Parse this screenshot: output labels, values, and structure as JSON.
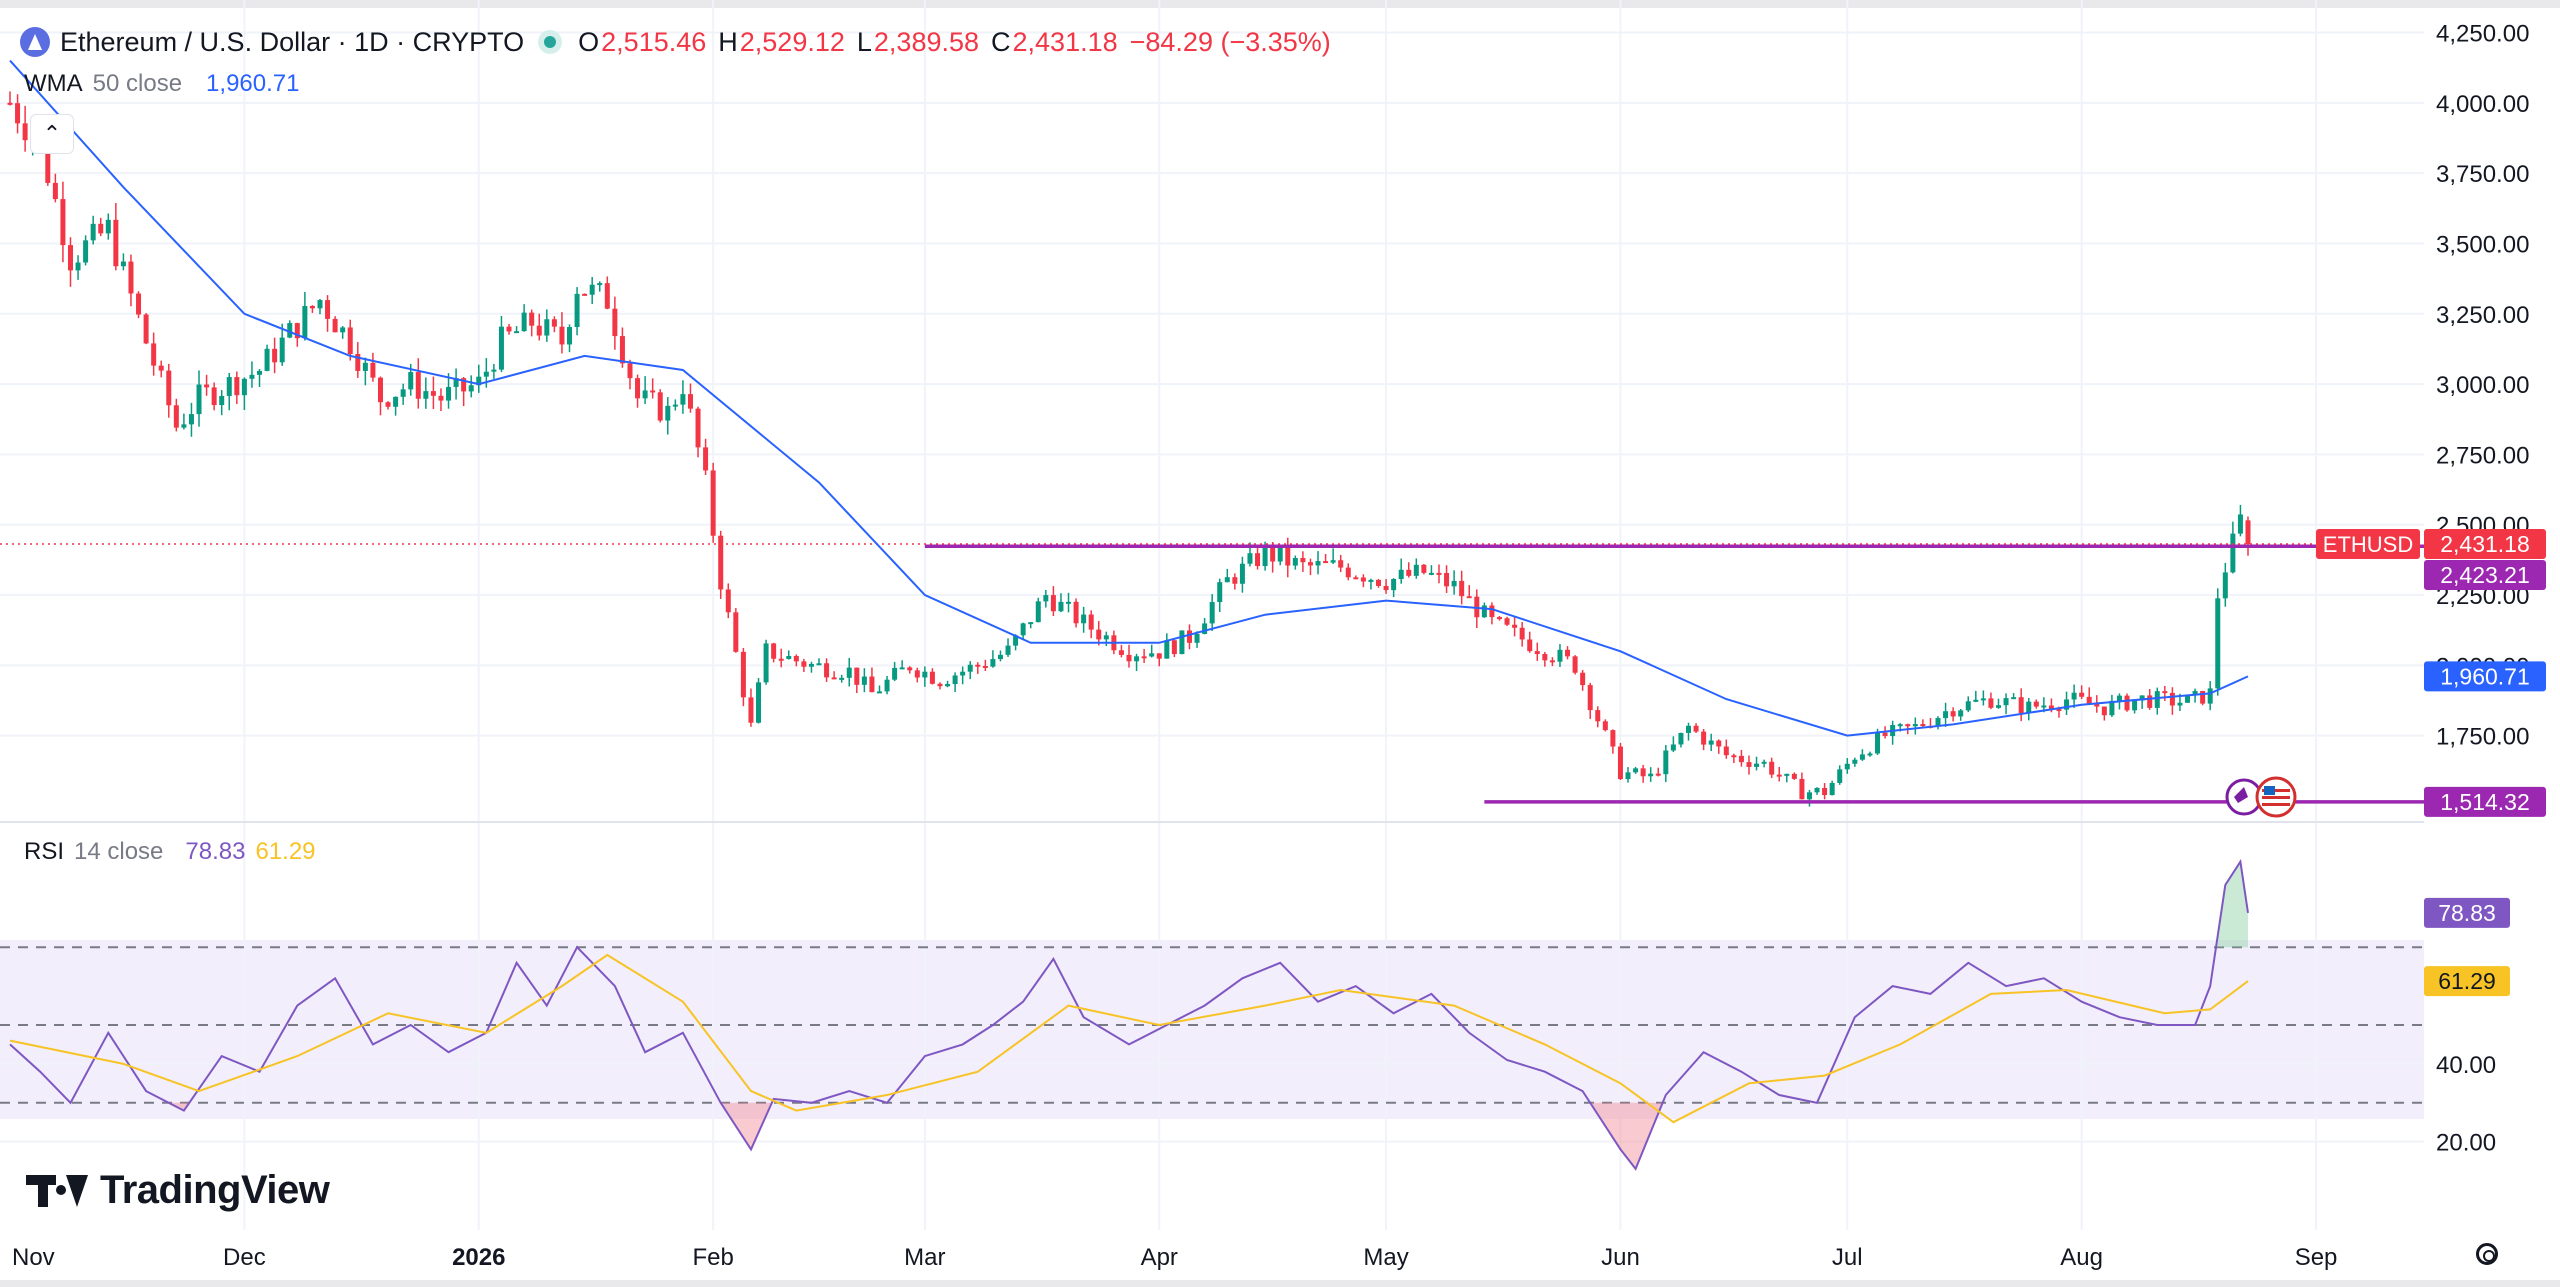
{
  "header": {
    "title": "Ethereum / U.S. Dollar · 1D · CRYPTO",
    "ohlc": {
      "o_label": "O",
      "o": "2,515.46",
      "h_label": "H",
      "h": "2,529.12",
      "l_label": "L",
      "l": "2,389.58",
      "c_label": "C",
      "c": "2,431.18",
      "change": "−84.29 (−3.35%)"
    }
  },
  "wma": {
    "name": "WMA",
    "params": "50 close",
    "value": "1,960.71"
  },
  "rsi": {
    "name": "RSI",
    "params": "14 close",
    "value": "78.83",
    "ma_value": "61.29"
  },
  "branding": {
    "logo_text": "TradingView"
  },
  "colors": {
    "up": "#089981",
    "down": "#f23645",
    "wma": "#2962ff",
    "level_line": "#9c27b0",
    "rsi_line": "#7e57c2",
    "rsi_ma": "#f7c325",
    "rsi_band": "#f2eefb",
    "grid": "#f0f3fa",
    "axis_text": "#131722"
  },
  "chart_data": [
    {
      "type": "candlestick",
      "symbol": "ETHUSD",
      "interval": "1D",
      "price_axis_labels": [
        "4,250.00",
        "4,000.00",
        "3,750.00",
        "3,500.00",
        "3,250.00",
        "3,000.00",
        "2,750.00",
        "2,500.00",
        "2,250.00",
        "2,000.00",
        "1,750.00"
      ],
      "price_axis_range": [
        1450,
        4330
      ],
      "time_axis_labels": [
        "Nov",
        "Dec",
        "2026",
        "Feb",
        "Mar",
        "Apr",
        "May",
        "Jun",
        "Jul",
        "Aug",
        "Sep"
      ],
      "time_axis_start": "2025-10-31",
      "date_range": [
        "2025-10-31",
        "2026-08-23"
      ],
      "last_price": 2431.18,
      "close_path": [
        [
          "2025-10-31",
          4000
        ],
        [
          "2025-11-04",
          3850
        ],
        [
          "2025-11-08",
          3450
        ],
        [
          "2025-11-13",
          3550
        ],
        [
          "2025-11-18",
          3150
        ],
        [
          "2025-11-22",
          2850
        ],
        [
          "2025-11-25",
          2950
        ],
        [
          "2025-11-29",
          3000
        ],
        [
          "2025-12-03",
          3050
        ],
        [
          "2025-12-07",
          3180
        ],
        [
          "2025-12-11",
          3300
        ],
        [
          "2025-12-15",
          3150
        ],
        [
          "2025-12-19",
          2950
        ],
        [
          "2025-12-23",
          3000
        ],
        [
          "2025-12-27",
          2950
        ],
        [
          "2026-01-01",
          3000
        ],
        [
          "2026-01-04",
          3150
        ],
        [
          "2026-01-08",
          3220
        ],
        [
          "2026-01-12",
          3150
        ],
        [
          "2026-01-14",
          3350
        ],
        [
          "2026-01-18",
          3300
        ],
        [
          "2026-01-22",
          2950
        ],
        [
          "2026-01-26",
          2900
        ],
        [
          "2026-01-28",
          3000
        ],
        [
          "2026-01-31",
          2650
        ],
        [
          "2026-02-02",
          2300
        ],
        [
          "2026-02-06",
          1780
        ],
        [
          "2026-02-08",
          2050
        ],
        [
          "2026-02-14",
          2000
        ],
        [
          "2026-02-19",
          1980
        ],
        [
          "2026-02-22",
          1900
        ],
        [
          "2026-02-27",
          2000
        ],
        [
          "2026-03-03",
          1950
        ],
        [
          "2026-03-08",
          2000
        ],
        [
          "2026-03-12",
          2050
        ],
        [
          "2026-03-17",
          2250
        ],
        [
          "2026-03-22",
          2150
        ],
        [
          "2026-03-28",
          2050
        ],
        [
          "2026-04-01",
          2050
        ],
        [
          "2026-04-05",
          2100
        ],
        [
          "2026-04-10",
          2300
        ],
        [
          "2026-04-15",
          2400
        ],
        [
          "2026-04-20",
          2350
        ],
        [
          "2026-04-25",
          2350
        ],
        [
          "2026-05-01",
          2300
        ],
        [
          "2026-05-06",
          2330
        ],
        [
          "2026-05-10",
          2280
        ],
        [
          "2026-05-15",
          2150
        ],
        [
          "2026-05-20",
          2080
        ],
        [
          "2026-05-26",
          2000
        ],
        [
          "2026-06-01",
          1620
        ],
        [
          "2026-06-05",
          1600
        ],
        [
          "2026-06-10",
          1780
        ],
        [
          "2026-06-15",
          1680
        ],
        [
          "2026-06-20",
          1650
        ],
        [
          "2026-06-25",
          1550
        ],
        [
          "2026-06-28",
          1550
        ],
        [
          "2026-07-02",
          1680
        ],
        [
          "2026-07-06",
          1750
        ],
        [
          "2026-07-10",
          1780
        ],
        [
          "2026-07-15",
          1850
        ],
        [
          "2026-07-20",
          1880
        ],
        [
          "2026-07-25",
          1850
        ],
        [
          "2026-07-30",
          1880
        ],
        [
          "2026-08-04",
          1850
        ],
        [
          "2026-08-09",
          1880
        ],
        [
          "2026-08-15",
          1870
        ],
        [
          "2026-08-18",
          1900
        ],
        [
          "2026-08-19",
          2250
        ],
        [
          "2026-08-20",
          2350
        ],
        [
          "2026-08-22",
          2515
        ],
        [
          "2026-08-23",
          2431
        ]
      ],
      "wma_path": [
        [
          "2025-10-31",
          4150
        ],
        [
          "2025-11-15",
          3700
        ],
        [
          "2025-12-01",
          3250
        ],
        [
          "2025-12-15",
          3100
        ],
        [
          "2026-01-01",
          3000
        ],
        [
          "2026-01-15",
          3100
        ],
        [
          "2026-01-28",
          3050
        ],
        [
          "2026-02-15",
          2650
        ],
        [
          "2026-03-01",
          2250
        ],
        [
          "2026-03-15",
          2080
        ],
        [
          "2026-04-01",
          2080
        ],
        [
          "2026-04-15",
          2180
        ],
        [
          "2026-05-01",
          2230
        ],
        [
          "2026-05-15",
          2200
        ],
        [
          "2026-06-01",
          2050
        ],
        [
          "2026-06-15",
          1880
        ],
        [
          "2026-07-01",
          1750
        ],
        [
          "2026-07-15",
          1790
        ],
        [
          "2026-08-01",
          1860
        ],
        [
          "2026-08-18",
          1900
        ],
        [
          "2026-08-23",
          1960.71
        ]
      ],
      "horizontal_levels": [
        {
          "price": 2423.21,
          "label": "2,423.21",
          "from": "2026-03-01"
        },
        {
          "price": 1514.32,
          "label": "1,514.32",
          "from": "2026-05-14"
        }
      ],
      "price_tags": [
        {
          "label": "2,431.18",
          "tag": "ETHUSD",
          "price": 2431.18
        },
        {
          "label": "2,423.21",
          "price": 2423.21
        },
        {
          "label": "1,960.71",
          "price": 1960.71
        },
        {
          "label": "1,514.32",
          "price": 1514.32
        }
      ]
    },
    {
      "type": "line",
      "name": "RSI 14 close",
      "axis_labels": [
        "40.00",
        "20.00"
      ],
      "levels": [
        70,
        50,
        30
      ],
      "range": [
        5,
        95
      ],
      "rsi_path": [
        [
          "2025-10-31",
          45
        ],
        [
          "2025-11-04",
          38
        ],
        [
          "2025-11-08",
          30
        ],
        [
          "2025-11-13",
          48
        ],
        [
          "2025-11-18",
          33
        ],
        [
          "2025-11-23",
          28
        ],
        [
          "2025-11-28",
          42
        ],
        [
          "2025-12-03",
          38
        ],
        [
          "2025-12-08",
          55
        ],
        [
          "2025-12-13",
          62
        ],
        [
          "2025-12-18",
          45
        ],
        [
          "2025-12-23",
          50
        ],
        [
          "2025-12-28",
          43
        ],
        [
          "2026-01-02",
          48
        ],
        [
          "2026-01-06",
          66
        ],
        [
          "2026-01-10",
          55
        ],
        [
          "2026-01-14",
          70
        ],
        [
          "2026-01-19",
          60
        ],
        [
          "2026-01-23",
          43
        ],
        [
          "2026-01-28",
          48
        ],
        [
          "2026-02-02",
          30
        ],
        [
          "2026-02-06",
          18
        ],
        [
          "2026-02-09",
          31
        ],
        [
          "2026-02-14",
          30
        ],
        [
          "2026-02-19",
          33
        ],
        [
          "2026-02-24",
          30
        ],
        [
          "2026-03-01",
          42
        ],
        [
          "2026-03-06",
          45
        ],
        [
          "2026-03-10",
          50
        ],
        [
          "2026-03-14",
          56
        ],
        [
          "2026-03-18",
          67
        ],
        [
          "2026-03-22",
          52
        ],
        [
          "2026-03-28",
          45
        ],
        [
          "2026-04-02",
          50
        ],
        [
          "2026-04-07",
          55
        ],
        [
          "2026-04-12",
          62
        ],
        [
          "2026-04-17",
          66
        ],
        [
          "2026-04-22",
          56
        ],
        [
          "2026-04-27",
          60
        ],
        [
          "2026-05-02",
          53
        ],
        [
          "2026-05-07",
          58
        ],
        [
          "2026-05-12",
          48
        ],
        [
          "2026-05-17",
          41
        ],
        [
          "2026-05-22",
          38
        ],
        [
          "2026-05-27",
          33
        ],
        [
          "2026-06-01",
          18
        ],
        [
          "2026-06-03",
          13
        ],
        [
          "2026-06-07",
          32
        ],
        [
          "2026-06-12",
          43
        ],
        [
          "2026-06-17",
          38
        ],
        [
          "2026-06-22",
          32
        ],
        [
          "2026-06-27",
          30
        ],
        [
          "2026-07-02",
          52
        ],
        [
          "2026-07-07",
          60
        ],
        [
          "2026-07-12",
          58
        ],
        [
          "2026-07-17",
          66
        ],
        [
          "2026-07-22",
          60
        ],
        [
          "2026-07-27",
          62
        ],
        [
          "2026-08-01",
          56
        ],
        [
          "2026-08-06",
          52
        ],
        [
          "2026-08-11",
          50
        ],
        [
          "2026-08-16",
          50
        ],
        [
          "2026-08-18",
          60
        ],
        [
          "2026-08-20",
          86
        ],
        [
          "2026-08-22",
          92
        ],
        [
          "2026-08-23",
          78.83
        ]
      ],
      "rsi_ma_path": [
        [
          "2025-10-31",
          46
        ],
        [
          "2025-11-15",
          40
        ],
        [
          "2025-11-25",
          33
        ],
        [
          "2025-12-08",
          42
        ],
        [
          "2025-12-20",
          53
        ],
        [
          "2026-01-02",
          48
        ],
        [
          "2026-01-12",
          60
        ],
        [
          "2026-01-18",
          68
        ],
        [
          "2026-01-28",
          56
        ],
        [
          "2026-02-06",
          33
        ],
        [
          "2026-02-12",
          28
        ],
        [
          "2026-02-24",
          32
        ],
        [
          "2026-03-08",
          38
        ],
        [
          "2026-03-20",
          55
        ],
        [
          "2026-04-01",
          50
        ],
        [
          "2026-04-15",
          55
        ],
        [
          "2026-04-25",
          59
        ],
        [
          "2026-05-10",
          55
        ],
        [
          "2026-05-22",
          45
        ],
        [
          "2026-06-01",
          35
        ],
        [
          "2026-06-08",
          25
        ],
        [
          "2026-06-18",
          35
        ],
        [
          "2026-06-28",
          37
        ],
        [
          "2026-07-08",
          45
        ],
        [
          "2026-07-20",
          58
        ],
        [
          "2026-07-30",
          59
        ],
        [
          "2026-08-12",
          53
        ],
        [
          "2026-08-18",
          54
        ],
        [
          "2026-08-23",
          61.29
        ]
      ],
      "tags": [
        {
          "label": "78.83",
          "value": 78.83
        },
        {
          "label": "61.29",
          "value": 61.29
        }
      ]
    }
  ]
}
